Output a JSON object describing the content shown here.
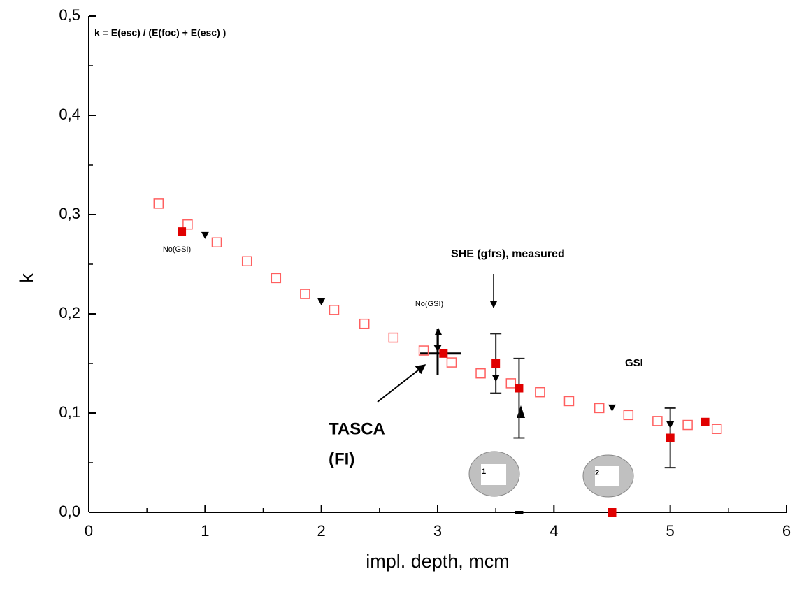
{
  "chart_data": {
    "type": "scatter",
    "xlabel": "impl. depth, mcm",
    "ylabel": "k",
    "xlim": [
      0,
      6
    ],
    "ylim": [
      0,
      0.5
    ],
    "xticks": [
      0,
      1,
      2,
      3,
      4,
      5,
      6
    ],
    "yticks": [
      {
        "value": 0,
        "label": "0,0"
      },
      {
        "value": 0.1,
        "label": "0,1"
      },
      {
        "value": 0.2,
        "label": "0,2"
      },
      {
        "value": 0.3,
        "label": "0,3"
      },
      {
        "value": 0.4,
        "label": "0,4"
      },
      {
        "value": 0.5,
        "label": "0,5"
      }
    ],
    "xminorticks": [
      0.5,
      1.5,
      2.5,
      3.5,
      4.5,
      5.5
    ],
    "yminorticks": [
      0.05,
      0.15,
      0.25,
      0.35,
      0.45
    ],
    "series": [
      {
        "color": "#ff6060",
        "marker": "open-square",
        "x": [
          0.6,
          0.85,
          1.1,
          1.36,
          1.61,
          1.86,
          2.11,
          2.37,
          2.62,
          2.88,
          3.12,
          3.37,
          3.63,
          3.88,
          4.13,
          4.39,
          4.64,
          4.89,
          5.15,
          5.4
        ],
        "values": [
          0.311,
          0.29,
          0.272,
          0.253,
          0.236,
          0.22,
          0.204,
          0.19,
          0.176,
          0.163,
          0.151,
          0.14,
          0.13,
          0.121,
          0.112,
          0.105,
          0.098,
          0.092,
          0.088,
          0.084
        ]
      },
      {
        "color": "#e00000",
        "marker": "square",
        "x": [
          0.8,
          3.05,
          3.5,
          3.7,
          4.5,
          5.0,
          5.3
        ],
        "values": [
          0.283,
          0.16,
          0.15,
          0.125,
          0.0,
          0.075,
          0.091
        ]
      },
      {
        "color": "#000000",
        "marker": "triangle-down",
        "x": [
          1.0,
          2.0,
          3.0,
          3.5,
          4.5,
          5.0
        ],
        "values": [
          0.279,
          0.212,
          0.165,
          0.135,
          0.105,
          0.088
        ]
      },
      {
        "color": "#000000",
        "marker": "dash",
        "x": [
          3.7
        ],
        "values": [
          0.0
        ]
      }
    ],
    "error_bars": [
      {
        "x": 3.5,
        "low": 0.12,
        "high": 0.18
      },
      {
        "x": 3.7,
        "low": 0.075,
        "high": 0.155
      },
      {
        "x": 5.0,
        "low": 0.045,
        "high": 0.105
      }
    ],
    "cross": {
      "x": 3.0,
      "y": 0.16,
      "xlow": 2.85,
      "xhigh": 3.2,
      "ylow": 0.138,
      "yhigh": 0.185
    },
    "annotations": [
      "k = E(esc) / (E(foc) + E(esc) )",
      "No(GSI)",
      "No(GSI)",
      "SHE (gfrs), measured",
      "GSI",
      "TASCA",
      "(FI)",
      "1",
      "2"
    ]
  }
}
